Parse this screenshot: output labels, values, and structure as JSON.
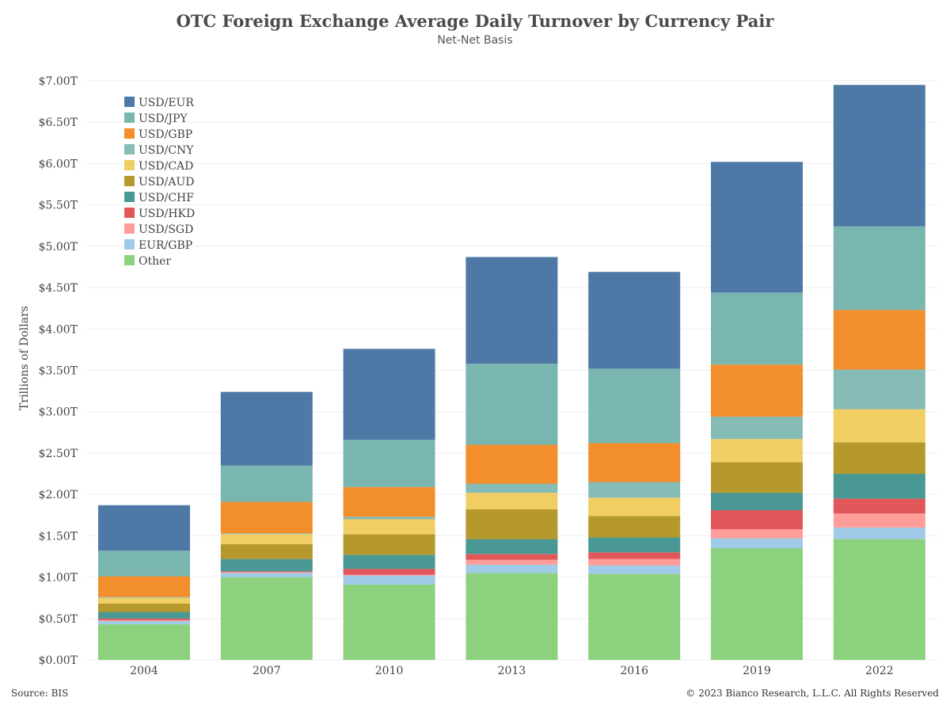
{
  "title": "OTC Foreign Exchange Average Daily Turnover by Currency Pair",
  "subtitle": "Net-Net Basis",
  "source": "Source: BIS",
  "copyright": "© 2023 Bianco Research, L.L.C. All Rights Reserved",
  "chart_data": {
    "type": "bar",
    "stacked": true,
    "title": "OTC Foreign Exchange Average Daily Turnover by Currency Pair",
    "subtitle": "Net-Net Basis",
    "xlabel": "",
    "ylabel": "Trillions of Dollars",
    "ylim": [
      0,
      7.0
    ],
    "yticks": [
      0,
      0.5,
      1.0,
      1.5,
      2.0,
      2.5,
      3.0,
      3.5,
      4.0,
      4.5,
      5.0,
      5.5,
      6.0,
      6.5,
      7.0
    ],
    "ytick_labels": [
      "$0.00T",
      "$0.50T",
      "$1.00T",
      "$1.50T",
      "$2.00T",
      "$2.50T",
      "$3.00T",
      "$3.50T",
      "$4.00T",
      "$4.50T",
      "$5.00T",
      "$5.50T",
      "$6.00T",
      "$6.50T",
      "$7.00T"
    ],
    "categories": [
      "2004",
      "2007",
      "2010",
      "2013",
      "2016",
      "2019",
      "2022"
    ],
    "grid": true,
    "legend_position": "top-left",
    "series": [
      {
        "name": "Other",
        "color": "#8cd17d",
        "values": [
          0.43,
          1.0,
          0.91,
          1.05,
          1.04,
          1.35,
          1.46
        ]
      },
      {
        "name": "EUR/GBP",
        "color": "#a0cbe8",
        "values": [
          0.04,
          0.05,
          0.11,
          0.1,
          0.1,
          0.12,
          0.14
        ]
      },
      {
        "name": "USD/SGD",
        "color": "#ff9d9a",
        "values": [
          0.01,
          0.01,
          0.01,
          0.06,
          0.08,
          0.11,
          0.17
        ]
      },
      {
        "name": "USD/HKD",
        "color": "#e15759",
        "values": [
          0.02,
          0.01,
          0.07,
          0.07,
          0.08,
          0.23,
          0.18
        ]
      },
      {
        "name": "USD/CHF",
        "color": "#499894",
        "values": [
          0.08,
          0.15,
          0.17,
          0.18,
          0.18,
          0.21,
          0.3
        ]
      },
      {
        "name": "USD/AUD",
        "color": "#b6992d",
        "values": [
          0.1,
          0.18,
          0.25,
          0.36,
          0.26,
          0.37,
          0.38
        ]
      },
      {
        "name": "USD/CAD",
        "color": "#f1ce63",
        "values": [
          0.07,
          0.12,
          0.18,
          0.2,
          0.22,
          0.28,
          0.4
        ]
      },
      {
        "name": "USD/CNY",
        "color": "#86bcb6",
        "values": [
          0.01,
          0.01,
          0.03,
          0.11,
          0.19,
          0.27,
          0.48
        ]
      },
      {
        "name": "USD/GBP",
        "color": "#f28e2b",
        "values": [
          0.25,
          0.38,
          0.36,
          0.47,
          0.47,
          0.63,
          0.72
        ]
      },
      {
        "name": "USD/JPY",
        "color": "#79b6b0",
        "values": [
          0.31,
          0.44,
          0.57,
          0.98,
          0.9,
          0.87,
          1.01
        ]
      },
      {
        "name": "USD/EUR",
        "color": "#4e79a7",
        "values": [
          0.55,
          0.89,
          1.1,
          1.29,
          1.17,
          1.58,
          1.71
        ]
      }
    ],
    "legend_order": [
      "USD/EUR",
      "USD/JPY",
      "USD/GBP",
      "USD/CNY",
      "USD/CAD",
      "USD/AUD",
      "USD/CHF",
      "USD/HKD",
      "USD/SGD",
      "EUR/GBP",
      "Other"
    ]
  }
}
